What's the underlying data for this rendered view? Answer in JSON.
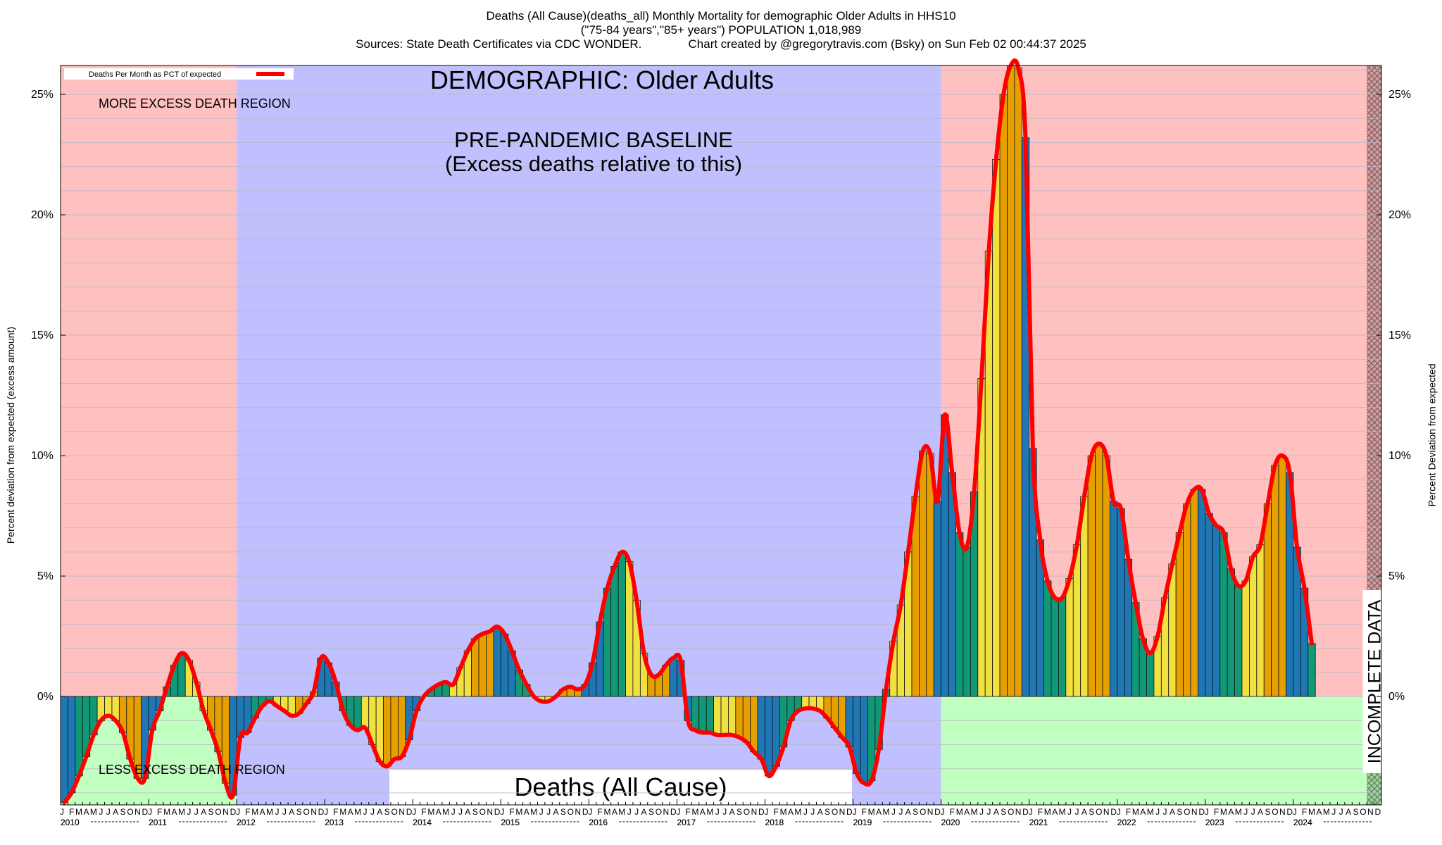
{
  "header": {
    "title_line1": "Deaths (All Cause)(deaths_all) Monthly Mortality for demographic Older Adults in HHS10",
    "title_line2": "(\"75-84 years\",\"85+ years\") POPULATION 1,018,989",
    "title_line3": "Sources: State Death Certificates via CDC WONDER.              Chart created by @gregorytravis.com (Bsky) on Sun Feb 02 00:44:37 2025"
  },
  "chart_data": {
    "type": "bar",
    "ylabel_left": "Percent deviation from expected (excess amount)",
    "ylabel_right": "Percent Deviation from expected",
    "legend_label": "Deaths Per Month as PCT of expected",
    "ylim": [
      -4.5,
      26.2
    ],
    "yticks": [
      "0%",
      "5%",
      "10%",
      "15%",
      "20%",
      "25%"
    ],
    "ytick_values": [
      0,
      5,
      10,
      15,
      20,
      25
    ],
    "start_year": 2010,
    "years": [
      "2010",
      "2011",
      "2012",
      "2013",
      "2014",
      "2015",
      "2016",
      "2017",
      "2018",
      "2019",
      "2020",
      "2021",
      "2022",
      "2023",
      "2024"
    ],
    "month_letters": [
      "J",
      "F",
      "M",
      "A",
      "M",
      "J",
      "J",
      "A",
      "S",
      "O",
      "N",
      "D"
    ],
    "annotations": {
      "demographic": "DEMOGRAPHIC: Older Adults",
      "baseline_line1": "PRE-PANDEMIC BASELINE",
      "baseline_line2": "(Excess deaths relative to this)",
      "more_excess": "MORE EXCESS DEATH REGION",
      "less_excess": "LESS EXCESS DEATH REGION",
      "bottom_label": "Deaths (All Cause)",
      "incomplete": "INCOMPLETE DATA"
    },
    "baseline_years": "2012-2019",
    "incomplete_from": "2024-11",
    "colors": {
      "more_region": "#ffc0c0",
      "less_region": "#c0ffc0",
      "baseline_region": "#c0c0ff",
      "line": "#ff0000",
      "bar_winter": "#1f77b4",
      "bar_spring": "#119977",
      "bar_summer": "#f0e040",
      "bar_fall": "#e69f00"
    },
    "series": [
      {
        "name": "Deaths Per Month as PCT of expected",
        "values": [
          -4.4,
          -4.0,
          -3.3,
          -2.5,
          -1.6,
          -1.0,
          -0.8,
          -1.0,
          -1.5,
          -2.6,
          -3.4,
          -3.4,
          -1.4,
          -0.6,
          0.4,
          1.3,
          1.8,
          1.5,
          0.6,
          -0.6,
          -1.4,
          -2.3,
          -3.6,
          -4.1,
          -1.7,
          -1.5,
          -0.9,
          -0.4,
          -0.2,
          -0.4,
          -0.6,
          -0.8,
          -0.7,
          -0.3,
          0.2,
          1.6,
          1.4,
          0.6,
          -0.6,
          -1.2,
          -1.4,
          -1.3,
          -2.0,
          -2.7,
          -2.9,
          -2.6,
          -2.5,
          -1.8,
          -0.6,
          0.0,
          0.3,
          0.5,
          0.6,
          0.5,
          1.2,
          1.9,
          2.4,
          2.6,
          2.7,
          2.9,
          2.6,
          1.9,
          1.1,
          0.5,
          0.0,
          -0.2,
          -0.2,
          0.0,
          0.3,
          0.4,
          0.3,
          0.5,
          1.4,
          3.1,
          4.5,
          5.4,
          6.0,
          5.6,
          4.0,
          1.8,
          0.9,
          0.9,
          1.3,
          1.6,
          1.5,
          -1.0,
          -1.4,
          -1.5,
          -1.5,
          -1.6,
          -1.6,
          -1.6,
          -1.7,
          -1.9,
          -2.3,
          -2.6,
          -3.3,
          -2.9,
          -2.1,
          -1.0,
          -0.6,
          -0.5,
          -0.5,
          -0.6,
          -0.9,
          -1.3,
          -1.7,
          -2.1,
          -3.2,
          -3.6,
          -3.5,
          -2.2,
          0.3,
          2.3,
          3.8,
          6.0,
          8.3,
          10.2,
          10.1,
          8.1,
          11.7,
          9.3,
          6.8,
          6.2,
          8.5,
          13.2,
          18.5,
          22.3,
          25.0,
          26.2,
          26.1,
          23.2,
          10.3,
          6.5,
          4.8,
          4.1,
          4.1,
          4.9,
          6.3,
          8.3,
          10.0,
          10.5,
          10.0,
          8.1,
          7.8,
          5.7,
          3.9,
          2.4,
          1.8,
          2.5,
          4.1,
          5.5,
          6.8,
          8.0,
          8.6,
          8.6,
          7.6,
          7.1,
          6.8,
          5.3,
          4.6,
          4.8,
          5.8,
          6.3,
          8.0,
          9.6,
          10.0,
          9.3,
          6.2,
          4.5,
          2.2
        ]
      }
    ]
  }
}
